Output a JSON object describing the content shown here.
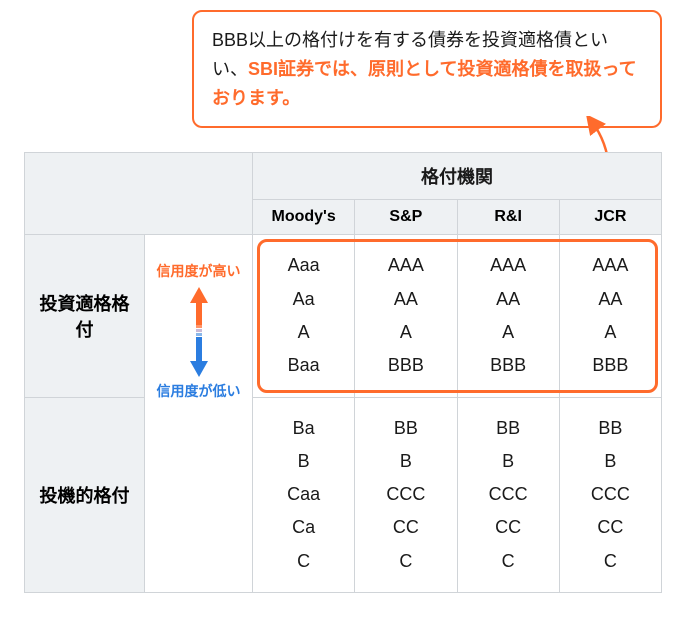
{
  "callout": {
    "text_prefix": "BBB以上の格付けを有する債券を投資適格債といい、",
    "text_highlight": "SBI証券では、原則として投資適格債を取扱っております。"
  },
  "colors": {
    "accent": "#ff6b2c",
    "blue": "#2b7de0",
    "border": "#d0d4d8",
    "headbg": "#eef1f3",
    "text": "#1a1a1a"
  },
  "table": {
    "agency_header": "格付機関",
    "agencies": [
      "Moody's",
      "S&P",
      "R&I",
      "JCR"
    ],
    "row_heads": {
      "investment": "投資適格格付",
      "speculative": "投機的格付"
    },
    "gauge": {
      "high": "信用度が高い",
      "low": "信用度が低い"
    },
    "investment": {
      "moodys": [
        "Aaa",
        "Aa",
        "A",
        "Baa"
      ],
      "sp": [
        "AAA",
        "AA",
        "A",
        "BBB"
      ],
      "ri": [
        "AAA",
        "AA",
        "A",
        "BBB"
      ],
      "jcr": [
        "AAA",
        "AA",
        "A",
        "BBB"
      ]
    },
    "speculative": {
      "moodys": [
        "Ba",
        "B",
        "Caa",
        "Ca",
        "C"
      ],
      "sp": [
        "BB",
        "B",
        "CCC",
        "CC",
        "C"
      ],
      "ri": [
        "BB",
        "B",
        "CCC",
        "CC",
        "C"
      ],
      "jcr": [
        "BB",
        "B",
        "CCC",
        "CC",
        "C"
      ]
    }
  }
}
